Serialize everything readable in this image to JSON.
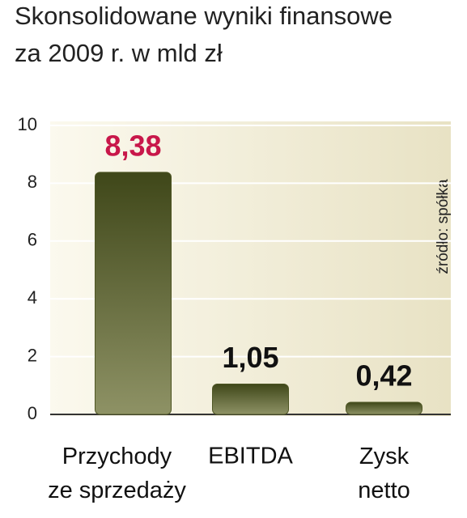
{
  "chart_data": {
    "type": "bar",
    "title": [
      "Skonsolidowane wyniki finansowe",
      "za 2009 r. w mld zł"
    ],
    "categories": [
      "Przychody ze sprzedaży",
      "EBITDA",
      "Zysk netto"
    ],
    "values": [
      8.38,
      1.05,
      0.42
    ],
    "value_labels": [
      "8,38",
      "1,05",
      "0,42"
    ],
    "value_label_colors": [
      "#c8174a",
      "#111111",
      "#111111"
    ],
    "color": "#4e5624",
    "ylim": [
      0,
      10
    ],
    "yticks": [
      0,
      2,
      4,
      6,
      8,
      10
    ],
    "grid": true,
    "annotation": "źródło: spółka"
  }
}
